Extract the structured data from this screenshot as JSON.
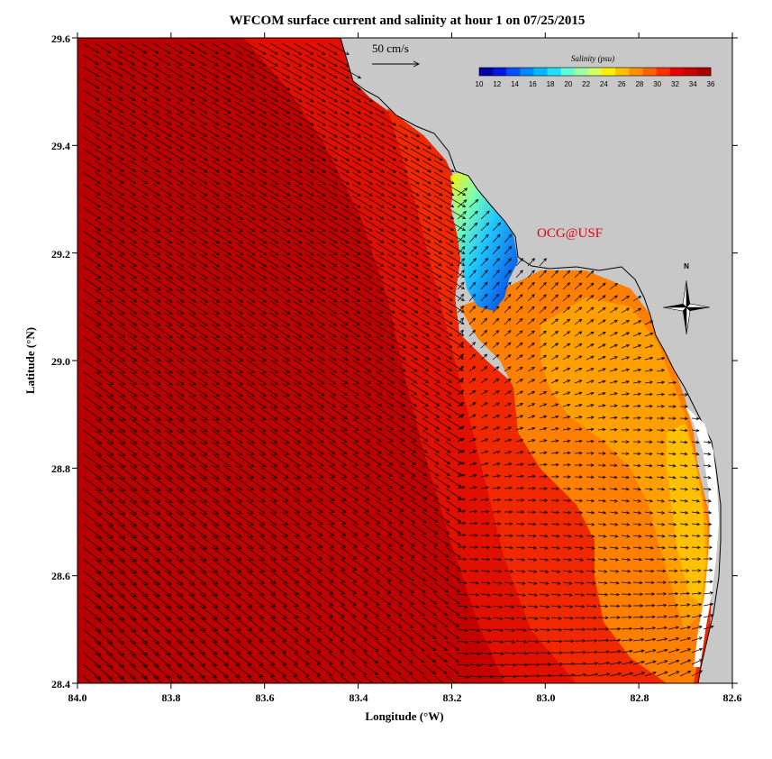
{
  "title": "WFCOM surface current and salinity at hour 1 on 07/25/2015",
  "xlabel": "Longitude (°W)",
  "ylabel": "Latitude (°N)",
  "x_ticks": [
    "84.0",
    "83.8",
    "83.6",
    "83.4",
    "83.2",
    "83.0",
    "82.8",
    "82.6"
  ],
  "y_ticks": [
    "29.6",
    "29.4",
    "29.2",
    "29.0",
    "28.8",
    "28.6",
    "28.4"
  ],
  "colorbar": {
    "title": "Salinity (psu)",
    "ticks": [
      "10",
      "12",
      "14",
      "16",
      "18",
      "20",
      "22",
      "24",
      "26",
      "28",
      "30",
      "32",
      "34",
      "36"
    ],
    "colors": [
      "#0000a8",
      "#0018e0",
      "#0050ff",
      "#0088ff",
      "#00b8ff",
      "#20e0ff",
      "#60ffd8",
      "#a0ffa0",
      "#d8ff60",
      "#fff000",
      "#ffc000",
      "#ff9000",
      "#ff6000",
      "#ff3000",
      "#e80000",
      "#c80000",
      "#a80000"
    ]
  },
  "reference_vector": {
    "label": "50 cm/s"
  },
  "credit": "OCG@USF",
  "north_arrow": {
    "label": "N"
  },
  "map": {
    "lon_range": [
      84.0,
      82.6
    ],
    "lat_range": [
      28.4,
      29.6
    ],
    "land_color": "#c8c8c8",
    "ocean_offshore_color": "#c00000",
    "ocean_nearshore_color": "#e81800",
    "plume_color": "#ff9000",
    "fresh_color": "#0050ff"
  }
}
